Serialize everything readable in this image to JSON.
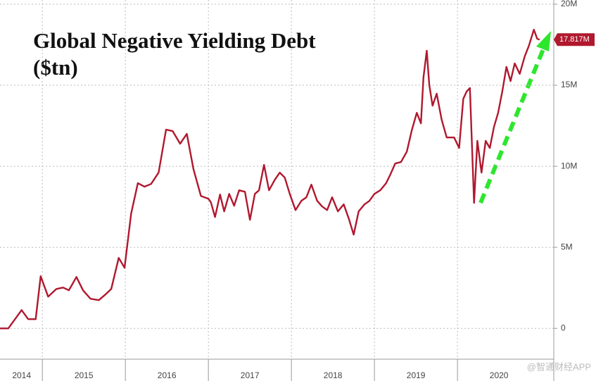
{
  "chart_data": {
    "type": "line",
    "title": "Global Negative Yielding Debt",
    "subtitle": "($tn)",
    "watermark": "@智通财经APP",
    "grid": true,
    "xlim": [
      2014.49,
      2021.16
    ],
    "xticks": [
      {
        "value": 2014.75,
        "label": "2014"
      },
      {
        "value": 2015.5,
        "label": "2015"
      },
      {
        "value": 2016.5,
        "label": "2016"
      },
      {
        "value": 2017.5,
        "label": "2017"
      },
      {
        "value": 2018.5,
        "label": "2018"
      },
      {
        "value": 2019.5,
        "label": "2019"
      },
      {
        "value": 2020.5,
        "label": "2020"
      }
    ],
    "ylim": [
      -1.9,
      20.26
    ],
    "yticks": [
      0,
      {
        "value": 5,
        "label": "5M"
      },
      {
        "value": 10,
        "label": "10M"
      },
      {
        "value": 15,
        "label": "15M"
      },
      {
        "value": 20,
        "label": "20M"
      }
    ],
    "last_value": 17.817,
    "last_value_label": "17.817M",
    "series": [
      {
        "color": "#b0182e",
        "x": [
          2014.49,
          2014.59,
          2014.75,
          2014.83,
          2014.92,
          2014.98,
          2015.07,
          2015.17,
          2015.25,
          2015.32,
          2015.41,
          2015.49,
          2015.58,
          2015.68,
          2015.76,
          2015.83,
          2015.92,
          2015.99,
          2016.07,
          2016.15,
          2016.23,
          2016.31,
          2016.4,
          2016.49,
          2016.57,
          2016.66,
          2016.74,
          2016.82,
          2016.91,
          2017,
          2017.03,
          2017.08,
          2017.14,
          2017.19,
          2017.25,
          2017.31,
          2017.37,
          2017.44,
          2017.5,
          2017.56,
          2017.61,
          2017.67,
          2017.73,
          2017.8,
          2017.86,
          2017.92,
          2017.98,
          2018.05,
          2018.12,
          2018.18,
          2018.24,
          2018.31,
          2018.37,
          2018.43,
          2018.49,
          2018.56,
          2018.63,
          2018.69,
          2018.75,
          2018.81,
          2018.88,
          2018.94,
          2019,
          2019.07,
          2019.14,
          2019.19,
          2019.25,
          2019.32,
          2019.39,
          2019.45,
          2019.51,
          2019.56,
          2019.59,
          2019.63,
          2019.66,
          2019.7,
          2019.75,
          2019.81,
          2019.87,
          2019.96,
          2020.02,
          2020.07,
          2020.11,
          2020.15,
          2020.2,
          2020.24,
          2020.29,
          2020.34,
          2020.39,
          2020.44,
          2020.49,
          2020.54,
          2020.59,
          2020.64,
          2020.69,
          2020.75,
          2020.81,
          2020.86,
          2020.92,
          2020.96,
          2020.99
        ],
        "values": [
          0,
          0,
          1.13,
          0.57,
          0.57,
          3.22,
          1.96,
          2.43,
          2.52,
          2.35,
          3.17,
          2.35,
          1.83,
          1.74,
          2.09,
          2.43,
          4.35,
          3.74,
          7.09,
          8.96,
          8.74,
          8.91,
          9.61,
          12.26,
          12.17,
          11.39,
          12,
          9.83,
          8.17,
          8,
          7.78,
          6.87,
          8.26,
          7.22,
          8.3,
          7.57,
          8.52,
          8.43,
          6.7,
          8.3,
          8.52,
          10.09,
          8.52,
          9.17,
          9.61,
          9.3,
          8.3,
          7.3,
          7.87,
          8.09,
          8.87,
          7.87,
          7.52,
          7.3,
          8.09,
          7.22,
          7.65,
          6.78,
          5.78,
          7.22,
          7.65,
          7.87,
          8.3,
          8.52,
          8.96,
          9.48,
          10.17,
          10.26,
          10.91,
          12.22,
          13.3,
          12.65,
          15.48,
          17.13,
          15.04,
          13.74,
          14.48,
          12.87,
          11.78,
          11.78,
          11.13,
          14.17,
          14.61,
          14.83,
          7.74,
          11.57,
          9.61,
          11.57,
          11.13,
          12.43,
          13.3,
          14.61,
          16.13,
          15.26,
          16.35,
          15.7,
          16.78,
          17.43,
          18.43,
          17.87,
          17.817
        ]
      }
    ]
  }
}
